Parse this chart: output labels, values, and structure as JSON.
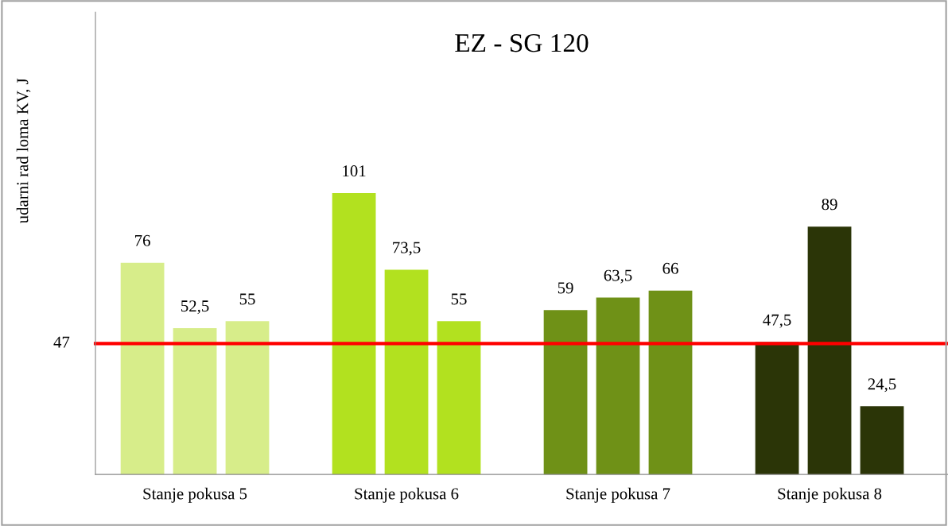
{
  "chart_data": {
    "type": "bar",
    "title": "EZ - SG 120",
    "ylabel": "udarni rad loma KV, J",
    "categories": [
      "Stanje pokusa 5",
      "Stanje pokusa 6",
      "Stanje pokusa 7",
      "Stanje pokusa 8"
    ],
    "series": [
      {
        "colors": [
          "#d7ed8a",
          "#b2e11f",
          "#6f9117",
          "#2b3507"
        ],
        "values": [
          76,
          101,
          59,
          47.5
        ],
        "value_labels": [
          "76",
          "101",
          "59",
          "47,5"
        ]
      },
      {
        "colors": [
          "#d7ed8a",
          "#b2e11f",
          "#6f9117",
          "#2b3507"
        ],
        "values": [
          52.5,
          73.5,
          63.5,
          89
        ],
        "value_labels": [
          "52,5",
          "73,5",
          "63,5",
          "89"
        ]
      },
      {
        "colors": [
          "#d7ed8a",
          "#b2e11f",
          "#6f9117",
          "#2b3507"
        ],
        "values": [
          55,
          55,
          66,
          24.5
        ],
        "value_labels": [
          "55",
          "55",
          "66",
          "24,5"
        ]
      }
    ],
    "ylim": [
      0,
      166
    ],
    "grid": false,
    "legend": false,
    "ref_lines": [
      {
        "axis": "y",
        "value": 47,
        "label": "47",
        "color": "#ff0000"
      }
    ]
  }
}
